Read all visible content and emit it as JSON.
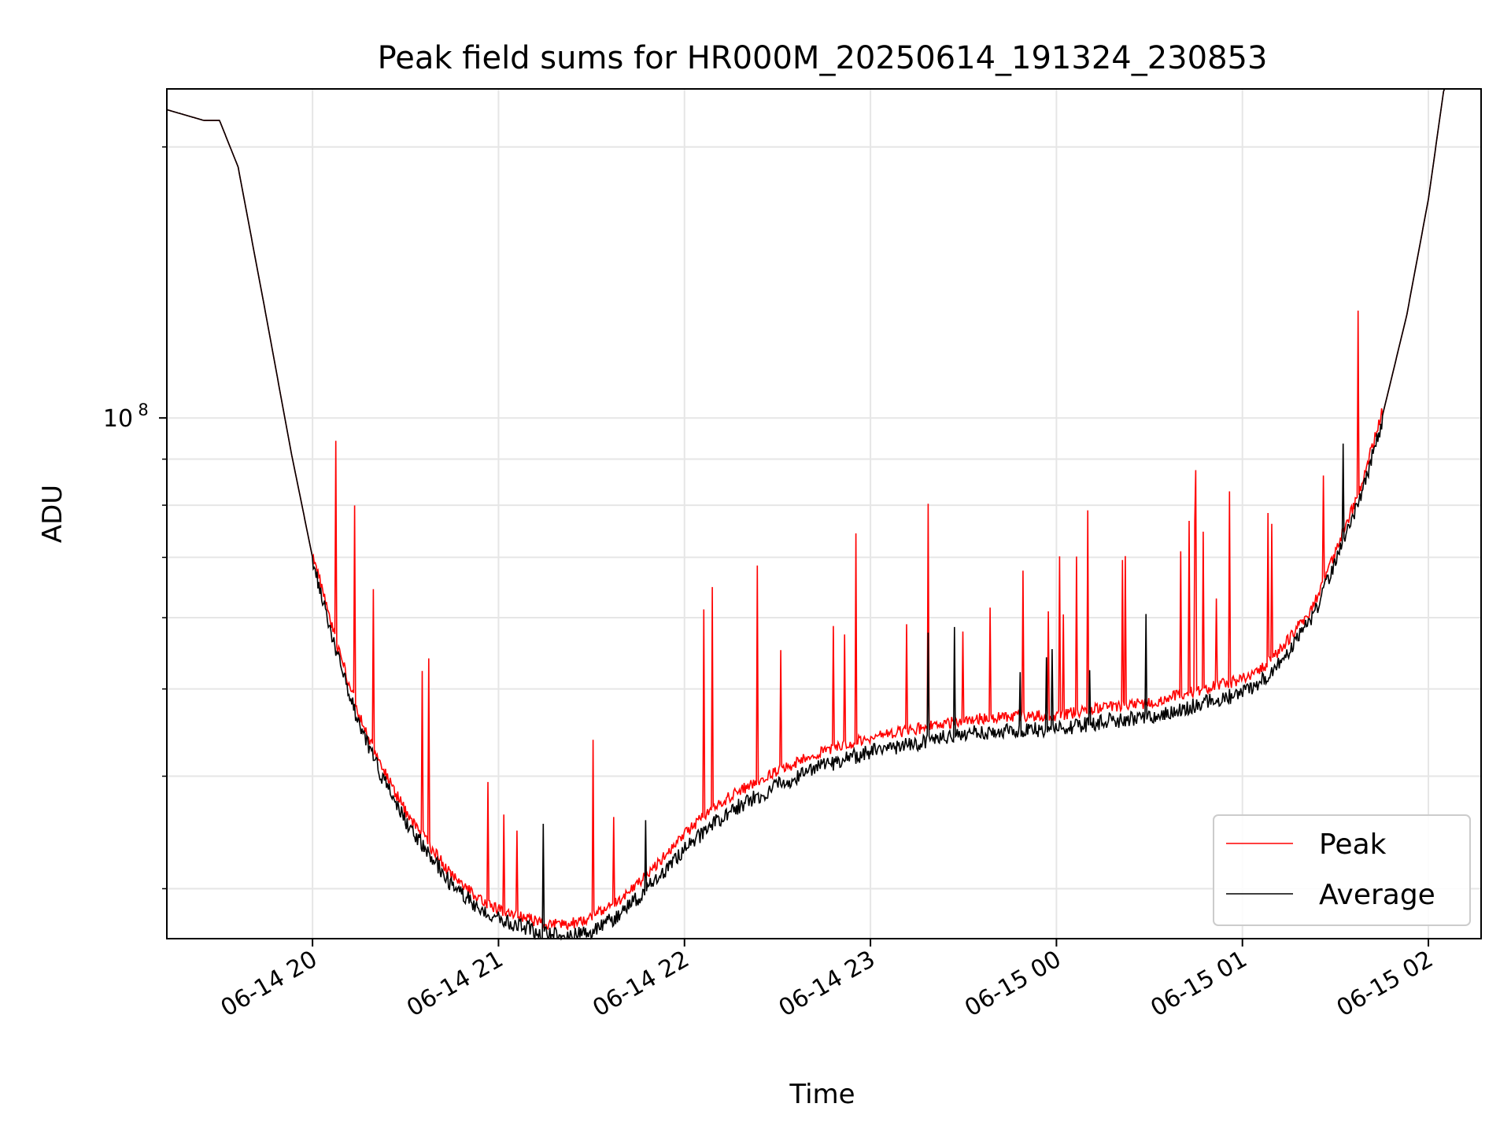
{
  "chart_data": {
    "type": "line",
    "title": "Peak field sums for HR000M_20250614_191324_230853",
    "xlabel": "Time",
    "ylabel": "ADU",
    "x_range": [
      "2025-06-14 19:13",
      "2025-06-15 02:17"
    ],
    "x_ticks": [
      "06-14 20",
      "06-14 21",
      "06-14 22",
      "06-14 23",
      "06-15 00",
      "06-15 01",
      "06-15 02"
    ],
    "y_scale": "log",
    "y_range": [
      26400000,
      232000000
    ],
    "y_major_tick_value": 100000000,
    "y_major_tick_label": "10",
    "y_major_tick_exponent": "8",
    "grid": true,
    "legend_position": "lower-right",
    "series": [
      {
        "name": "Peak",
        "color": "#ff0000",
        "x": [
          "06-14 19:13",
          "06-14 19:25",
          "06-14 19:30",
          "06-14 19:36",
          "06-14 19:45",
          "06-14 19:53",
          "06-14 20:00",
          "06-14 20:08",
          "06-14 20:15",
          "06-14 20:23",
          "06-14 20:30",
          "06-14 20:38",
          "06-14 20:45",
          "06-14 20:53",
          "06-14 21:00",
          "06-14 21:08",
          "06-14 21:15",
          "06-14 21:23",
          "06-14 21:30",
          "06-14 21:38",
          "06-14 21:45",
          "06-14 21:53",
          "06-14 22:00",
          "06-14 22:08",
          "06-14 22:15",
          "06-14 22:30",
          "06-14 22:45",
          "06-14 23:00",
          "06-14 23:15",
          "06-14 23:30",
          "06-14 23:45",
          "06-15 00:00",
          "06-15 00:15",
          "06-15 00:30",
          "06-15 00:45",
          "06-15 01:00",
          "06-15 01:08",
          "06-15 01:15",
          "06-15 01:23",
          "06-15 01:30",
          "06-15 01:38",
          "06-15 01:45",
          "06-15 01:53",
          "06-15 02:00",
          "06-15 02:05",
          "06-15 02:17"
        ],
        "values": [
          220000000,
          214000000,
          214000000,
          190000000,
          130000000,
          92000000,
          70000000,
          55000000,
          46000000,
          40000000,
          36000000,
          33000000,
          30500000,
          29000000,
          28000000,
          27500000,
          27000000,
          27000000,
          27500000,
          28500000,
          30000000,
          32000000,
          34000000,
          36000000,
          37500000,
          40000000,
          42000000,
          43500000,
          44500000,
          45500000,
          46000000,
          46000000,
          47000000,
          47500000,
          49000000,
          50500000,
          52500000,
          56000000,
          61000000,
          70000000,
          82000000,
          100000000,
          130000000,
          175000000,
          232000000,
          232000000
        ]
      },
      {
        "name": "Average",
        "color": "#000000",
        "x": [
          "06-14 19:13",
          "06-14 19:25",
          "06-14 19:30",
          "06-14 19:36",
          "06-14 19:45",
          "06-14 19:53",
          "06-14 20:00",
          "06-14 20:08",
          "06-14 20:15",
          "06-14 20:23",
          "06-14 20:30",
          "06-14 20:38",
          "06-14 20:45",
          "06-14 20:53",
          "06-14 21:00",
          "06-14 21:08",
          "06-14 21:15",
          "06-14 21:23",
          "06-14 21:30",
          "06-14 21:38",
          "06-14 21:45",
          "06-14 21:53",
          "06-14 22:00",
          "06-14 22:08",
          "06-14 22:15",
          "06-14 22:30",
          "06-14 22:45",
          "06-14 23:00",
          "06-14 23:15",
          "06-14 23:30",
          "06-14 23:45",
          "06-15 00:00",
          "06-15 00:15",
          "06-15 00:30",
          "06-15 00:45",
          "06-15 01:00",
          "06-15 01:08",
          "06-15 01:15",
          "06-15 01:23",
          "06-15 01:30",
          "06-15 01:38",
          "06-15 01:45",
          "06-15 01:53",
          "06-15 02:00",
          "06-15 02:05",
          "06-15 02:17"
        ],
        "values": [
          220000000,
          214000000,
          214000000,
          190000000,
          130000000,
          92000000,
          70000000,
          55000000,
          46000000,
          40000000,
          36000000,
          33000000,
          30500000,
          29000000,
          28000000,
          27500000,
          27000000,
          26800000,
          27200000,
          28200000,
          29600000,
          31500000,
          33500000,
          35500000,
          37000000,
          39500000,
          41500000,
          43000000,
          44000000,
          45000000,
          45500000,
          45500000,
          46500000,
          47000000,
          48500000,
          50000000,
          52000000,
          55500000,
          61000000,
          70000000,
          82000000,
          100000000,
          130000000,
          175000000,
          232000000,
          232000000
        ]
      }
    ]
  }
}
